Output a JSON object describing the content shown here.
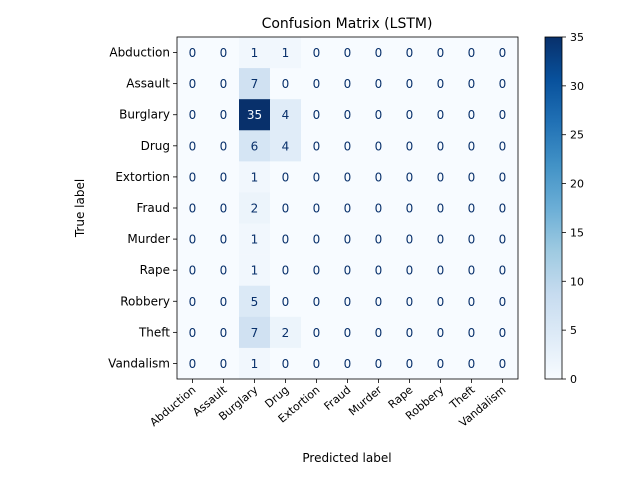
{
  "chart_data": {
    "type": "heatmap",
    "title": "Confusion Matrix (LSTM)",
    "xlabel": "Predicted label",
    "ylabel": "True label",
    "labels": [
      "Abduction",
      "Assault",
      "Burglary",
      "Drug",
      "Extortion",
      "Fraud",
      "Murder",
      "Rape",
      "Robbery",
      "Theft",
      "Vandalism"
    ],
    "matrix": [
      [
        0,
        0,
        1,
        1,
        0,
        0,
        0,
        0,
        0,
        0,
        0
      ],
      [
        0,
        0,
        7,
        0,
        0,
        0,
        0,
        0,
        0,
        0,
        0
      ],
      [
        0,
        0,
        35,
        4,
        0,
        0,
        0,
        0,
        0,
        0,
        0
      ],
      [
        0,
        0,
        6,
        4,
        0,
        0,
        0,
        0,
        0,
        0,
        0
      ],
      [
        0,
        0,
        1,
        0,
        0,
        0,
        0,
        0,
        0,
        0,
        0
      ],
      [
        0,
        0,
        2,
        0,
        0,
        0,
        0,
        0,
        0,
        0,
        0
      ],
      [
        0,
        0,
        1,
        0,
        0,
        0,
        0,
        0,
        0,
        0,
        0
      ],
      [
        0,
        0,
        1,
        0,
        0,
        0,
        0,
        0,
        0,
        0,
        0
      ],
      [
        0,
        0,
        5,
        0,
        0,
        0,
        0,
        0,
        0,
        0,
        0
      ],
      [
        0,
        0,
        7,
        2,
        0,
        0,
        0,
        0,
        0,
        0,
        0
      ],
      [
        0,
        0,
        1,
        0,
        0,
        0,
        0,
        0,
        0,
        0,
        0
      ]
    ],
    "colormap": "Blues",
    "color_range": [
      0,
      35
    ],
    "colorbar_ticks": [
      0,
      5,
      10,
      15,
      20,
      25,
      30,
      35
    ],
    "colors": {
      "low": "#f7fbff",
      "high": "#08306b"
    }
  }
}
